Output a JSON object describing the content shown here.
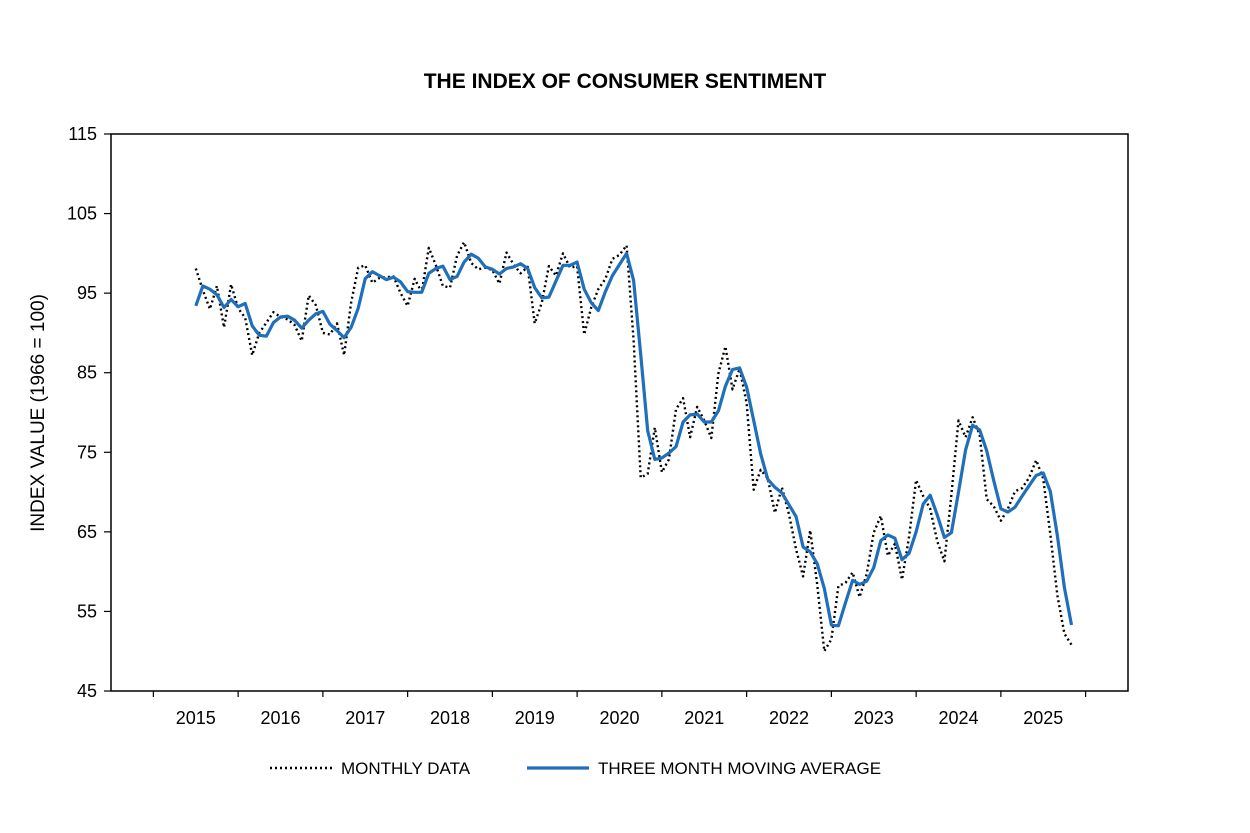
{
  "chart_data": {
    "type": "line",
    "title": "THE INDEX OF CONSUMER SENTIMENT",
    "xlabel": "",
    "ylabel": "INDEX VALUE (1966 = 100)",
    "ylim": [
      45,
      115
    ],
    "xlim": [
      2014.0,
      2026.0
    ],
    "yticks": [
      45,
      55,
      65,
      75,
      85,
      95,
      105,
      115
    ],
    "xticks": [
      2015,
      2016,
      2017,
      2018,
      2019,
      2020,
      2021,
      2022,
      2023,
      2024,
      2025
    ],
    "grid": false,
    "legend": "bottom",
    "series": [
      {
        "name": "MONTHLY DATA",
        "style": "dotted",
        "color": "#000000",
        "x_start": 2015.0,
        "x_step": 0.0833333,
        "values": [
          98.1,
          95.4,
          93.0,
          95.9,
          90.7,
          96.1,
          93.1,
          91.9,
          87.2,
          90.0,
          91.3,
          92.6,
          92.0,
          91.7,
          91.0,
          89.0,
          94.7,
          93.5,
          90.0,
          89.8,
          91.2,
          87.2,
          93.8,
          98.2,
          98.5,
          96.3,
          96.9,
          97.0,
          97.1,
          95.0,
          93.4,
          96.8,
          95.1,
          100.7,
          98.5,
          95.9,
          95.7,
          99.7,
          101.4,
          98.8,
          98.0,
          98.2,
          97.9,
          96.2,
          100.1,
          98.6,
          97.5,
          98.3,
          91.2,
          93.8,
          98.4,
          97.2,
          100.0,
          98.2,
          98.4,
          89.8,
          93.2,
          95.5,
          96.8,
          99.3,
          99.8,
          101.0,
          89.1,
          71.8,
          72.3,
          78.1,
          72.5,
          74.1,
          80.4,
          81.8,
          76.9,
          80.7,
          79.0,
          76.8,
          84.9,
          88.3,
          82.9,
          85.5,
          81.2,
          70.3,
          72.8,
          71.7,
          67.4,
          70.6,
          67.2,
          62.8,
          59.4,
          65.2,
          58.4,
          50.0,
          51.5,
          58.2,
          58.6,
          59.9,
          56.8,
          59.7,
          64.9,
          67.0,
          62.0,
          63.5,
          59.0,
          64.4,
          71.5,
          69.5,
          67.9,
          63.8,
          61.3,
          69.7,
          79.0,
          76.9,
          79.4,
          77.2,
          69.1,
          68.2,
          66.4,
          67.9,
          70.1,
          70.5,
          71.8,
          74.0,
          71.7,
          64.7,
          57.0,
          52.2,
          50.8
        ]
      },
      {
        "name": "THREE MONTH MOVING AVERAGE",
        "style": "solid",
        "color": "#1f6fba",
        "x_start": 2015.0,
        "x_step": 0.0833333,
        "values": [
          93.4,
          95.9,
          95.5,
          94.8,
          93.2,
          94.2,
          93.3,
          93.7,
          90.9,
          89.7,
          89.6,
          91.3,
          92.0,
          92.1,
          91.6,
          90.6,
          91.6,
          92.4,
          92.7,
          91.1,
          90.3,
          89.4,
          90.7,
          93.1,
          96.8,
          97.7,
          97.2,
          96.7,
          97.0,
          96.4,
          95.2,
          95.1,
          95.1,
          97.5,
          98.1,
          98.4,
          96.7,
          97.1,
          98.9,
          99.9,
          99.4,
          98.3,
          98.0,
          97.4,
          98.1,
          98.3,
          98.7,
          98.1,
          95.7,
          94.4,
          94.5,
          96.5,
          98.5,
          98.5,
          98.9,
          95.5,
          93.8,
          92.8,
          95.2,
          97.2,
          98.6,
          100.0,
          96.6,
          87.3,
          77.7,
          74.1,
          74.3,
          74.9,
          75.7,
          78.8,
          79.7,
          79.8,
          78.8,
          78.8,
          80.2,
          83.3,
          85.4,
          85.6,
          83.2,
          79.0,
          74.8,
          71.6,
          70.6,
          69.9,
          68.4,
          66.9,
          63.1,
          62.5,
          61.0,
          57.9,
          53.3,
          53.2,
          56.1,
          58.9,
          58.4,
          58.8,
          60.5,
          63.9,
          64.6,
          64.2,
          61.5,
          62.3,
          65.0,
          68.5,
          69.6,
          67.1,
          64.3,
          64.9,
          70.0,
          75.3,
          78.4,
          77.8,
          75.2,
          71.4,
          67.9,
          67.5,
          68.1,
          69.5,
          70.8,
          72.1,
          72.4,
          70.1,
          64.5,
          58.0,
          53.3
        ]
      }
    ]
  }
}
